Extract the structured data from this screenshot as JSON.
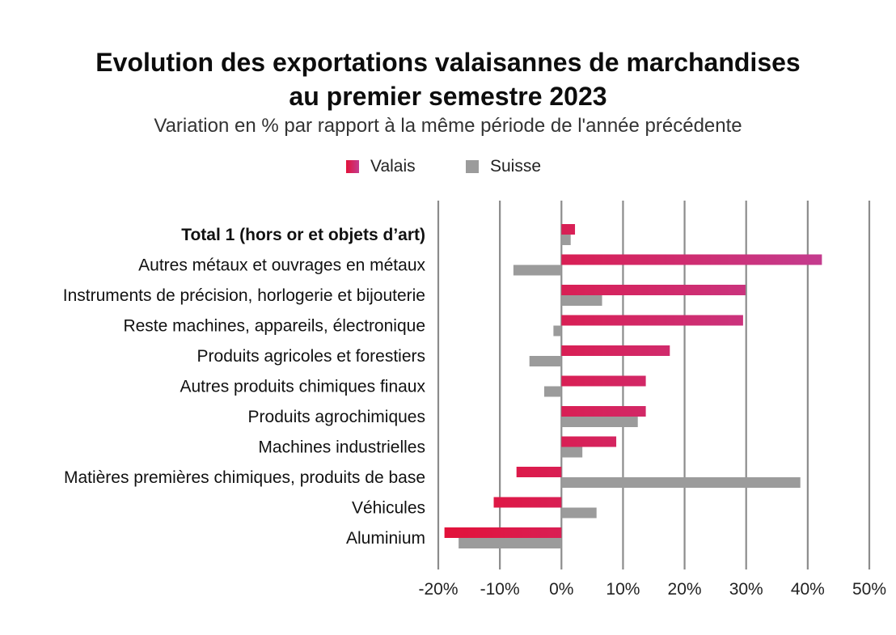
{
  "title_line1": "Evolution des exportations valaisannes de marchandises",
  "title_line2": "au premier semestre 2023",
  "subtitle": "Variation en % par rapport à la même période de l'année précédente",
  "legend": {
    "valais": "Valais",
    "suisse": "Suisse"
  },
  "colors": {
    "valais_start": "#e2123a",
    "valais_end": "#c43c8f",
    "suisse": "#9b9b9b",
    "grid": "#8c8c8c"
  },
  "chart_data": {
    "type": "bar",
    "orientation": "horizontal",
    "title": "Evolution des exportations valaisannes de marchandises au premier semestre 2023",
    "subtitle": "Variation en % par rapport à la même période de l'année précédente",
    "categories": [
      "Total 1 (hors or et objets d’art)",
      "Autres métaux et ouvrages en métaux",
      "Instruments de précision, horlogerie et bijouterie",
      "Reste machines, appareils, électronique",
      "Produits agricoles et forestiers",
      "Autres produits chimiques finaux",
      "Produits agrochimiques",
      "Machines industrielles",
      "Matières premières chimiques, produits de base",
      "Véhicules",
      "Aluminium"
    ],
    "bold_categories": [
      "Total 1 (hors or et objets d’art)"
    ],
    "series": [
      {
        "name": "Valais",
        "values": [
          2.2,
          42.3,
          29.9,
          29.5,
          17.6,
          13.7,
          13.7,
          8.9,
          -7.3,
          -11.0,
          -19.0
        ]
      },
      {
        "name": "Suisse",
        "values": [
          1.5,
          -7.8,
          6.6,
          -1.3,
          -5.2,
          -2.8,
          12.4,
          3.4,
          38.8,
          5.7,
          -16.7
        ]
      }
    ],
    "xlim": [
      -20,
      50
    ],
    "xticks": [
      -20,
      -10,
      0,
      10,
      20,
      30,
      40,
      50
    ],
    "xtick_labels": [
      "-20%",
      "-10%",
      "0%",
      "10%",
      "20%",
      "30%",
      "40%",
      "50%"
    ],
    "grid": true,
    "legend_position": "top"
  }
}
